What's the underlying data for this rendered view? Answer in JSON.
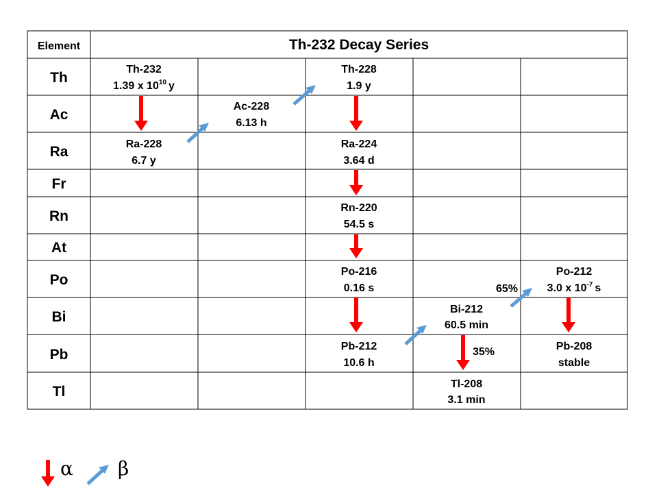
{
  "table": {
    "element_header": "Element",
    "title": "Th-232 Decay Series",
    "rows": [
      "Th",
      "Ac",
      "Ra",
      "Fr",
      "Rn",
      "At",
      "Po",
      "Bi",
      "Pb",
      "Tl"
    ]
  },
  "nuclides": [
    {
      "id": "th-232",
      "name": "Th-232",
      "half_life_prefix": "1.39 x 10",
      "half_life_exp": "10",
      "half_life_suffix": "y"
    },
    {
      "id": "ra-228",
      "name": "Ra-228",
      "half_life": "6.7 y"
    },
    {
      "id": "ac-228",
      "name": "Ac-228",
      "half_life": "6.13 h"
    },
    {
      "id": "th-228",
      "name": "Th-228",
      "half_life": "1.9 y"
    },
    {
      "id": "ra-224",
      "name": "Ra-224",
      "half_life": "3.64 d"
    },
    {
      "id": "rn-220",
      "name": "Rn-220",
      "half_life": "54.5 s"
    },
    {
      "id": "po-216",
      "name": "Po-216",
      "half_life": "0.16 s"
    },
    {
      "id": "pb-212",
      "name": "Pb-212",
      "half_life": "10.6 h"
    },
    {
      "id": "bi-212",
      "name": "Bi-212",
      "half_life": "60.5 min"
    },
    {
      "id": "tl-208",
      "name": "Tl-208",
      "half_life": "3.1 min"
    },
    {
      "id": "po-212",
      "name": "Po-212",
      "half_life_prefix": "3.0 x 10",
      "half_life_exp": "-7",
      "half_life_suffix": "s"
    },
    {
      "id": "pb-208",
      "name": "Pb-208",
      "half_life": "stable"
    }
  ],
  "branch_labels": {
    "beta_branch": "65%",
    "alpha_branch": "35%"
  },
  "legend": {
    "alpha_symbol": "α",
    "beta_symbol": "β"
  },
  "colors": {
    "alpha_arrow": "#ff0000",
    "beta_arrow": "#5b9bd5",
    "grid": "#000000"
  }
}
